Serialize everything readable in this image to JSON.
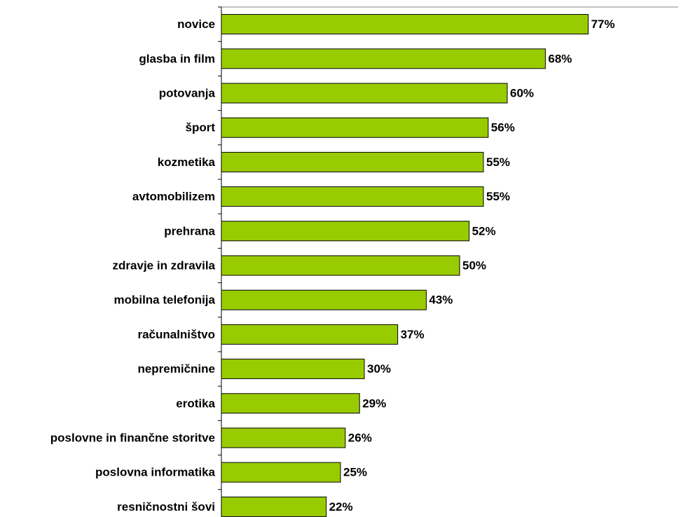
{
  "colors": {
    "bar_fill": "#99cc00",
    "bar_stroke": "#000000",
    "axis": "#000000",
    "frame_line": "#808080",
    "text": "#000000"
  },
  "chart_data": {
    "type": "bar",
    "orientation": "horizontal",
    "categories": [
      "novice",
      "glasba in film",
      "potovanja",
      "šport",
      "kozmetika",
      "avtomobilizem",
      "prehrana",
      "zdravje in zdravila",
      "mobilna telefonija",
      "računalništvo",
      "nepremičnine",
      "erotika",
      "poslovne in finančne storitve",
      "poslovna informatika",
      "resničnostni šovi"
    ],
    "values": [
      77,
      68,
      60,
      56,
      55,
      55,
      52,
      50,
      43,
      37,
      30,
      29,
      26,
      25,
      22
    ],
    "value_labels": [
      "77%",
      "68%",
      "60%",
      "56%",
      "55%",
      "55%",
      "52%",
      "50%",
      "43%",
      "37%",
      "30%",
      "29%",
      "26%",
      "25%",
      "22%"
    ],
    "unit": "%",
    "title": "",
    "xlabel": "",
    "ylabel": "",
    "xlim": [
      0,
      100
    ],
    "grid": false,
    "legend": "none",
    "data_labels": true
  }
}
